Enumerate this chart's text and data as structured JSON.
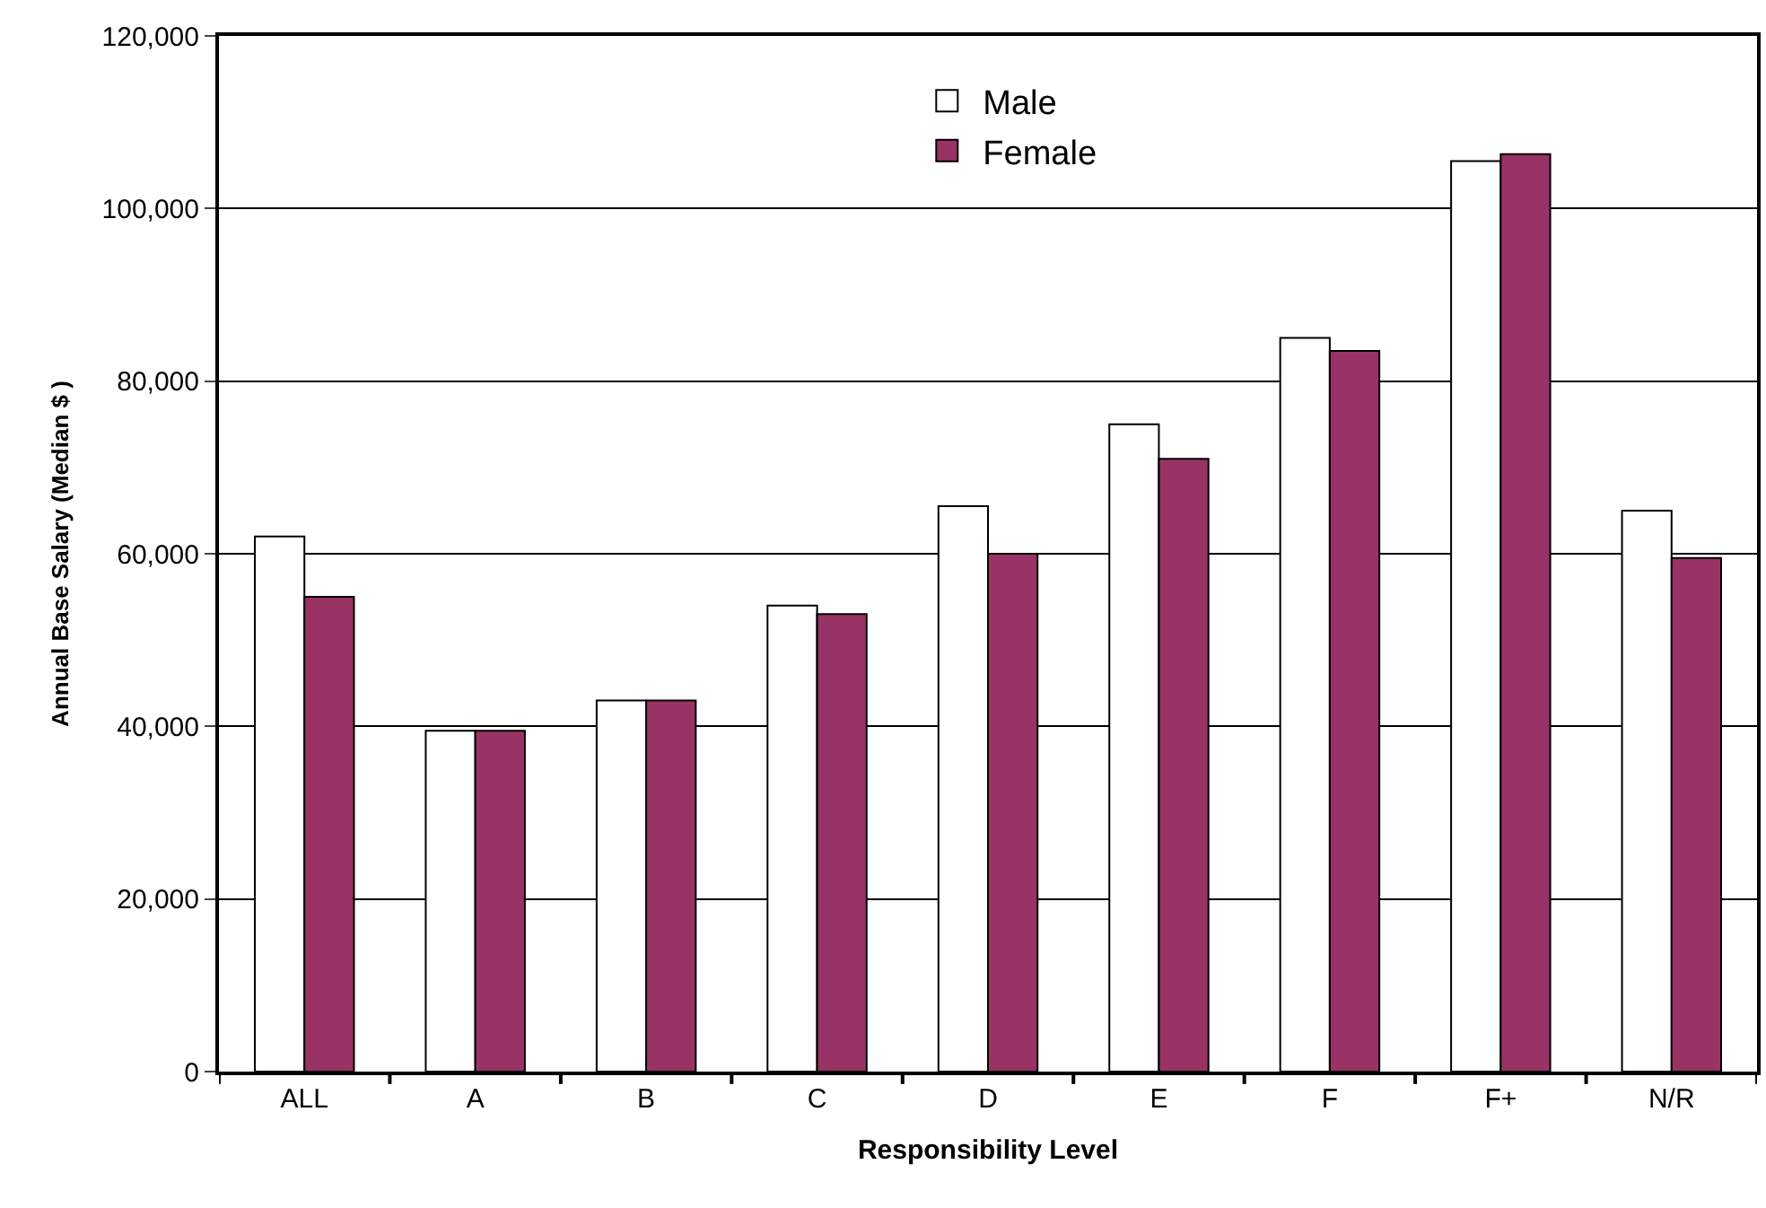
{
  "chart_data": {
    "type": "bar",
    "xlabel": "Responsibility Level",
    "ylabel": "Annual Base Salary (Median $ )",
    "categories": [
      "ALL",
      "A",
      "B",
      "C",
      "D",
      "E",
      "F",
      "F+",
      "N/R"
    ],
    "series": [
      {
        "name": "Male",
        "color": "#ffffff",
        "values": [
          62000,
          39500,
          43000,
          54000,
          65500,
          75000,
          85000,
          105500,
          65000
        ]
      },
      {
        "name": "Female",
        "color": "#993366",
        "values": [
          55000,
          39500,
          43000,
          53000,
          60000,
          71000,
          83500,
          106300,
          59500
        ]
      }
    ],
    "ylim": [
      0,
      120000
    ],
    "yticks": [
      {
        "value": 0,
        "label": "0"
      },
      {
        "value": 20000,
        "label": "20,000"
      },
      {
        "value": 40000,
        "label": "40,000"
      },
      {
        "value": 60000,
        "label": "60,000"
      },
      {
        "value": 80000,
        "label": "80,000"
      },
      {
        "value": 100000,
        "label": "100,000"
      },
      {
        "value": 120000,
        "label": "120,000"
      }
    ],
    "grid": "y",
    "legend": "top"
  }
}
